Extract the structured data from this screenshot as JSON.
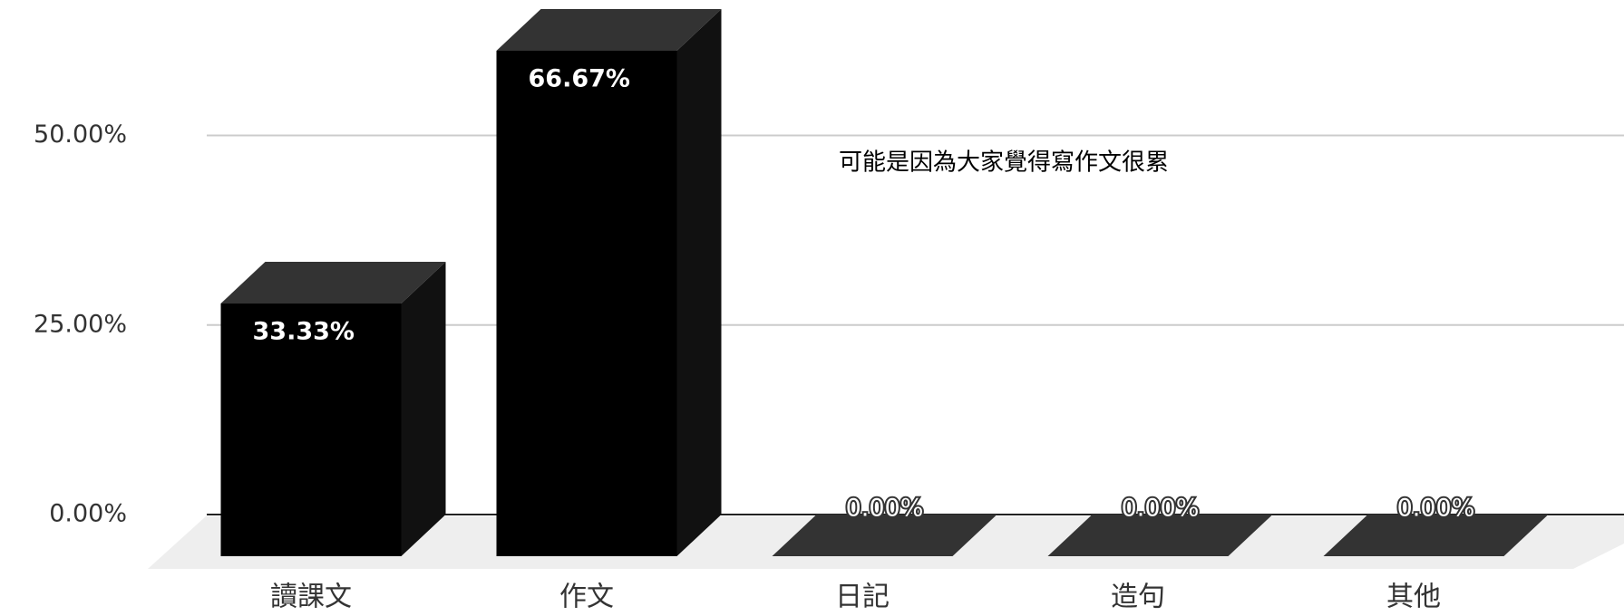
{
  "chart_data": {
    "type": "bar3d",
    "categories": [
      "讀課文",
      "作文",
      "日記",
      "造句",
      "其他"
    ],
    "values": [
      33.33,
      66.67,
      0,
      0,
      0
    ],
    "value_labels": [
      "33.33%",
      "66.67%",
      "0.00%",
      "0.00%",
      "0.00%"
    ],
    "color": "#000000",
    "ylim": [
      0,
      70
    ],
    "yticks": [
      {
        "value": 0,
        "label": "0.00%"
      },
      {
        "value": 25,
        "label": "25.00%"
      },
      {
        "value": 50,
        "label": "50.00%"
      }
    ],
    "grid": true,
    "annotation": "可能是因為大家覺得寫作文很累"
  }
}
